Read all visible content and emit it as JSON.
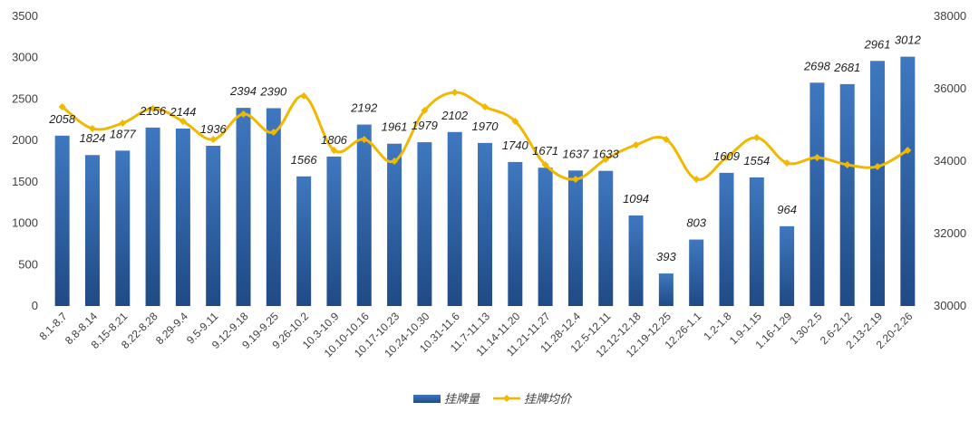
{
  "chart_data": {
    "type": "bar",
    "categories": [
      "8.1-8.7",
      "8.8-8.14",
      "8.15-8.21",
      "8.22-8.28",
      "8.29-9.4",
      "9.5-9.11",
      "9.12-9.18",
      "9.19-9.25",
      "9.26-10.2",
      "10.3-10.9",
      "10.10-10.16",
      "10.17-10.23",
      "10.24-10.30",
      "10.31-11.6",
      "11.7-11.13",
      "11.14-11.20",
      "11.21-11.27",
      "11.28-12.4",
      "12.5-12.11",
      "12.12-12.18",
      "12.19-12.25",
      "12.26-1.1",
      "1.2-1.8",
      "1.9-1.15",
      "1.16-1.29",
      "1.30-2.5",
      "2.6-2.12",
      "2.13-2.19",
      "2.20-2.26"
    ],
    "series": [
      {
        "name": "挂牌量",
        "type": "bar",
        "axis": "left",
        "color": "#2e5fa0",
        "values": [
          2058,
          1824,
          1877,
          2156,
          2144,
          1936,
          2394,
          2390,
          1566,
          1806,
          2192,
          1961,
          1979,
          2102,
          1970,
          1740,
          1671,
          1637,
          1633,
          1094,
          393,
          803,
          1609,
          1554,
          964,
          2698,
          2681,
          2961,
          3012
        ],
        "labels": [
          "2058",
          "1824",
          "1877",
          "2156",
          "2144",
          "1936",
          "2394",
          "2390",
          "1566",
          "1806",
          "2192",
          "1961",
          "1979",
          "2102",
          "1970",
          "1740",
          "1671",
          "1637",
          "1633",
          "1094",
          "393",
          "803",
          "1609",
          "1554",
          "964",
          "2698",
          "2681",
          "2961",
          "3012"
        ]
      },
      {
        "name": "挂牌均价",
        "type": "line",
        "axis": "right",
        "color": "#f2b800",
        "values": [
          35500,
          34900,
          35050,
          35450,
          35100,
          34600,
          35300,
          34800,
          35800,
          34300,
          34600,
          34000,
          35400,
          35900,
          35500,
          35100,
          33900,
          33500,
          34050,
          34450,
          34600,
          33500,
          34100,
          34650,
          33950,
          34100,
          33900,
          33850,
          34300
        ]
      }
    ],
    "left_axis": {
      "min": 0,
      "max": 3500,
      "ticks": [
        "0",
        "500",
        "1000",
        "1500",
        "2000",
        "2500",
        "3000",
        "3500"
      ]
    },
    "right_axis": {
      "min": 30000,
      "max": 38000,
      "ticks": [
        "30000",
        "32000",
        "34000",
        "36000",
        "38000"
      ]
    },
    "legend_position": "bottom-center",
    "grid": false
  }
}
